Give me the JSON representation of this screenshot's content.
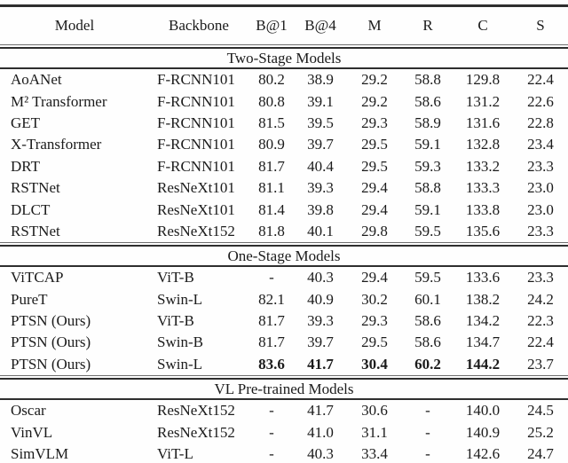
{
  "page": {
    "background": "#fefefe",
    "text_color": "#1b1b1b",
    "rule_color": "#2e2e2e"
  },
  "table": {
    "columns": [
      "Model",
      "Backbone",
      "B@1",
      "B@4",
      "M",
      "R",
      "C",
      "S"
    ],
    "sections": [
      {
        "title": "Two-Stage Models",
        "rows": [
          {
            "cells": [
              "AoANet",
              "F-RCNN101",
              "80.2",
              "38.9",
              "29.2",
              "58.8",
              "129.8",
              "22.4"
            ]
          },
          {
            "cells": [
              "M² Transformer",
              "F-RCNN101",
              "80.8",
              "39.1",
              "29.2",
              "58.6",
              "131.2",
              "22.6"
            ]
          },
          {
            "cells": [
              "GET",
              "F-RCNN101",
              "81.5",
              "39.5",
              "29.3",
              "58.9",
              "131.6",
              "22.8"
            ]
          },
          {
            "cells": [
              "X-Transformer",
              "F-RCNN101",
              "80.9",
              "39.7",
              "29.5",
              "59.1",
              "132.8",
              "23.4"
            ]
          },
          {
            "cells": [
              "DRT",
              "F-RCNN101",
              "81.7",
              "40.4",
              "29.5",
              "59.3",
              "133.2",
              "23.3"
            ]
          },
          {
            "cells": [
              "RSTNet",
              "ResNeXt101",
              "81.1",
              "39.3",
              "29.4",
              "58.8",
              "133.3",
              "23.0"
            ]
          },
          {
            "cells": [
              "DLCT",
              "ResNeXt101",
              "81.4",
              "39.8",
              "29.4",
              "59.1",
              "133.8",
              "23.0"
            ]
          },
          {
            "cells": [
              "RSTNet",
              "ResNeXt152",
              "81.8",
              "40.1",
              "29.8",
              "59.5",
              "135.6",
              "23.3"
            ]
          }
        ]
      },
      {
        "title": "One-Stage Models",
        "rows": [
          {
            "cells": [
              "ViTCAP",
              "ViT-B",
              "-",
              "40.3",
              "29.4",
              "59.5",
              "133.6",
              "23.3"
            ]
          },
          {
            "cells": [
              "PureT",
              "Swin-L",
              "82.1",
              "40.9",
              "30.2",
              "60.1",
              "138.2",
              "24.2"
            ]
          },
          {
            "cells": [
              "PTSN (Ours)",
              "ViT-B",
              "81.7",
              "39.3",
              "29.3",
              "58.6",
              "134.2",
              "22.3"
            ]
          },
          {
            "cells": [
              "PTSN (Ours)",
              "Swin-B",
              "81.7",
              "39.7",
              "29.5",
              "58.6",
              "134.7",
              "22.4"
            ]
          },
          {
            "cells": [
              "PTSN (Ours)",
              "Swin-L",
              "83.6",
              "41.7",
              "30.4",
              "60.2",
              "144.2",
              "23.7"
            ],
            "bold": [
              2,
              3,
              4,
              5,
              6
            ]
          }
        ]
      },
      {
        "title": "VL Pre-trained Models",
        "rows": [
          {
            "cells": [
              "Oscar",
              "ResNeXt152",
              "-",
              "41.7",
              "30.6",
              "-",
              "140.0",
              "24.5"
            ]
          },
          {
            "cells": [
              "VinVL",
              "ResNeXt152",
              "-",
              "41.0",
              "31.1",
              "-",
              "140.9",
              "25.2"
            ]
          },
          {
            "cells": [
              "SimVLM",
              "ViT-L",
              "-",
              "40.3",
              "33.4",
              "-",
              "142.6",
              "24.7"
            ]
          }
        ]
      }
    ]
  }
}
